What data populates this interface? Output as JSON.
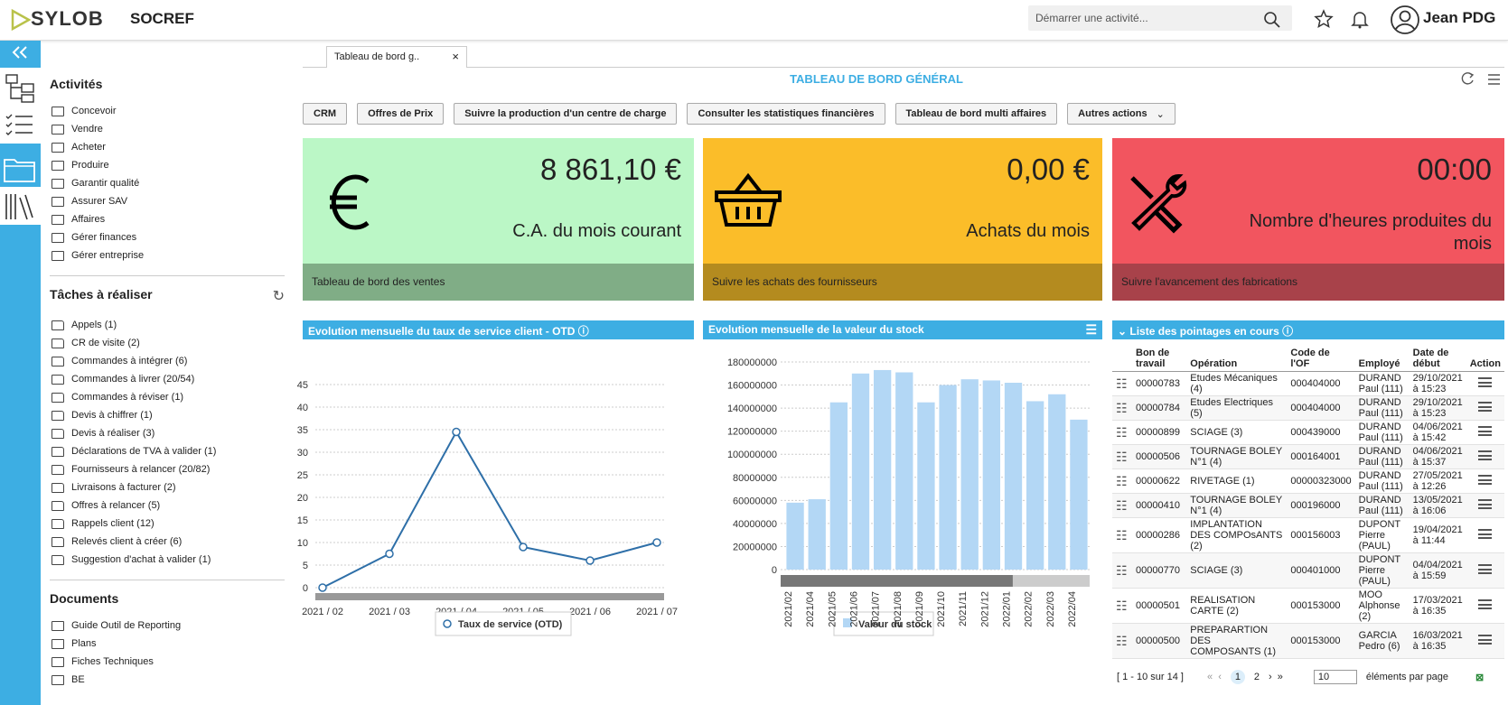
{
  "header": {
    "logo": "SYLOB",
    "company": "SOCREF",
    "search_placeholder": "Démarrer une activité...",
    "user": "Jean PDG"
  },
  "tab": "Tableau de bord g..",
  "page_title": "TABLEAU DE BORD GÉNÉRAL",
  "actions": [
    "CRM",
    "Offres de Prix",
    "Suivre la production d'un centre de charge",
    "Consulter les statistiques financières",
    "Tableau de bord multi affaires",
    "Autres actions"
  ],
  "sidebar": {
    "activities": {
      "title": "Activités",
      "items": [
        "Concevoir",
        "Vendre",
        "Acheter",
        "Produire",
        "Garantir qualité",
        "Assurer SAV",
        "Affaires",
        "Gérer finances",
        "Gérer entreprise"
      ]
    },
    "tasks": {
      "title": "Tâches à réaliser",
      "items": [
        "Appels (1)",
        "CR de visite (2)",
        "Commandes à intégrer (6)",
        "Commandes à livrer (20/54)",
        "Commandes à réviser (1)",
        "Devis à chiffrer (1)",
        "Devis à réaliser (3)",
        "Déclarations de TVA à valider (1)",
        "Fournisseurs à relancer (20/82)",
        "Livraisons à facturer (2)",
        "Offres à relancer (5)",
        "Rappels client (12)",
        "Relevés client à créer (6)",
        "Suggestion d'achat à valider (1)"
      ]
    },
    "documents": {
      "title": "Documents",
      "items": [
        "Guide Outil de Reporting",
        "Plans",
        "Fiches Techniques",
        "BE"
      ]
    }
  },
  "kpis": [
    {
      "value": "8 861,10 €",
      "label": "C.A. du mois courant",
      "footer": "Tableau de bord des ventes"
    },
    {
      "value": "0,00 €",
      "label": "Achats du mois",
      "footer": "Suivre les achats des fournisseurs"
    },
    {
      "value": "00:00",
      "label": "Nombre d'heures produites du mois",
      "footer": "Suivre l'avancement des fabrications"
    }
  ],
  "chart_data": [
    {
      "type": "line",
      "title": "Evolution mensuelle du taux de service client - OTD",
      "categories": [
        "2021 / 02",
        "2021 / 03",
        "2021 / 04",
        "2021 / 05",
        "2021 / 06",
        "2021 / 07"
      ],
      "series": [
        {
          "name": "Taux de service (OTD)",
          "color": "#2e6fa8",
          "values": [
            0,
            7.5,
            34.5,
            9,
            6,
            10
          ]
        }
      ],
      "ylim": [
        0,
        47
      ],
      "yticks": [
        0,
        5,
        10,
        15,
        20,
        25,
        30,
        35,
        40,
        45
      ],
      "grid": true
    },
    {
      "type": "bar",
      "title": "Evolution mensuelle de la valeur du stock",
      "categories": [
        "2021/02",
        "2021/04",
        "2021/05",
        "2021/06",
        "2021/07",
        "2021/08",
        "2021/09",
        "2021/10",
        "2021/11",
        "2021/12",
        "2022/01",
        "2022/02",
        "2022/03",
        "2022/04"
      ],
      "series": [
        {
          "name": "Valeur du stock",
          "color": "#b3d7f5",
          "values": [
            58000000,
            61000000,
            145000000,
            170000000,
            173000000,
            171000000,
            145000000,
            160000000,
            165000000,
            164000000,
            162000000,
            146000000,
            152000000,
            130000000
          ]
        }
      ],
      "ylim": [
        0,
        180000000
      ],
      "yticks": [
        0,
        20000000,
        40000000,
        60000000,
        80000000,
        100000000,
        120000000,
        140000000,
        160000000,
        180000000
      ],
      "grid": true
    }
  ],
  "table": {
    "title": "Liste des pointages en cours",
    "columns": [
      "Bon de travail",
      "Opération",
      "Code de l'OF",
      "Employé",
      "Date de début",
      "Action"
    ],
    "rows": [
      [
        "00000783",
        "Etudes Mécaniques (4)",
        "000404000",
        "DURAND Paul (111)",
        "29/10/2021 à 15:23"
      ],
      [
        "00000784",
        "Etudes Electriques (5)",
        "000404000",
        "DURAND Paul (111)",
        "29/10/2021 à 15:23"
      ],
      [
        "00000899",
        "SCIAGE (3)",
        "000439000",
        "DURAND Paul (111)",
        "04/06/2021 à 15:42"
      ],
      [
        "00000506",
        "TOURNAGE BOLEY N°1 (4)",
        "000164001",
        "DURAND Paul (111)",
        "04/06/2021 à 15:37"
      ],
      [
        "00000622",
        "RIVETAGE (1)",
        "00000323000",
        "DURAND Paul (111)",
        "27/05/2021 à 12:26"
      ],
      [
        "00000410",
        "TOURNAGE BOLEY N°1 (4)",
        "000196000",
        "DURAND Paul (111)",
        "13/05/2021 à 16:06"
      ],
      [
        "00000286",
        "IMPLANTATION DES COMPOsANTS (2)",
        "000156003",
        "DUPONT Pierre (PAUL)",
        "19/04/2021 à 11:44"
      ],
      [
        "00000770",
        "SCIAGE (3)",
        "000401000",
        "DUPONT Pierre (PAUL)",
        "04/04/2021 à 15:59"
      ],
      [
        "00000501",
        "REALISATION CARTE (2)",
        "000153000",
        "MOO Alphonse (2)",
        "17/03/2021 à 16:35"
      ],
      [
        "00000500",
        "PREPARARTION DES COMPOSANTS (1)",
        "000153000",
        "GARCIA Pedro (6)",
        "16/03/2021 à 16:35"
      ]
    ],
    "range": "[ 1 - 10 sur 14 ]",
    "pages": [
      "1",
      "2"
    ],
    "page_size": "10",
    "page_size_label": "éléments par page"
  }
}
